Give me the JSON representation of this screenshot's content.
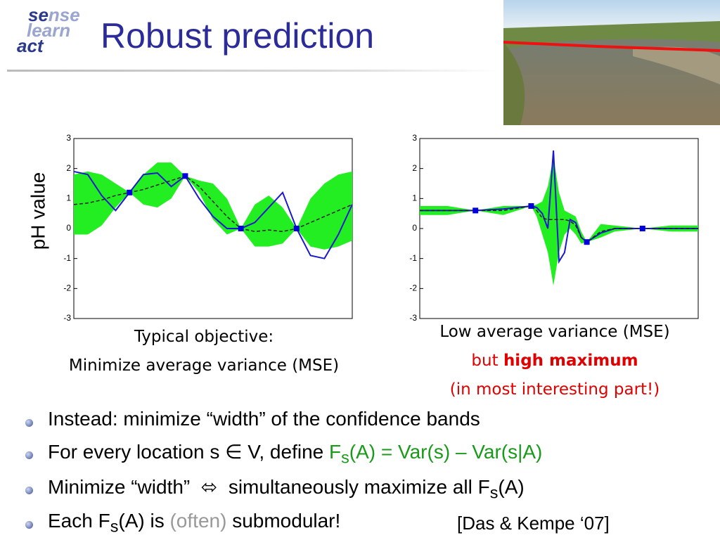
{
  "title": "Robust prediction",
  "logo": [
    [
      {
        "text": "se",
        "style": "dark"
      },
      {
        "text": "nse",
        "style": "light"
      }
    ],
    [
      {
        "text": "le",
        "style": "light"
      },
      {
        "text": "arn",
        "style": "light"
      }
    ],
    [
      {
        "text": "act",
        "style": "dark"
      }
    ]
  ],
  "chart_data": [
    {
      "type": "line",
      "ylabel": "pH value",
      "xlim": [
        0,
        1
      ],
      "ylim": [
        -3,
        3
      ],
      "yticks": [
        3,
        2,
        1,
        0,
        -1,
        -2,
        -3
      ],
      "x": [
        0,
        0.05,
        0.1,
        0.15,
        0.2,
        0.25,
        0.3,
        0.35,
        0.4,
        0.45,
        0.5,
        0.55,
        0.6,
        0.65,
        0.7,
        0.75,
        0.8,
        0.85,
        0.9,
        0.95,
        1
      ],
      "band": {
        "color": "#22ee22",
        "upper": [
          1.8,
          1.9,
          1.8,
          1.5,
          1.2,
          1.8,
          2.2,
          2.2,
          1.75,
          1.6,
          1.5,
          1.0,
          0.0,
          0.8,
          1.1,
          0.7,
          0.0,
          1.0,
          1.5,
          1.8,
          1.9
        ],
        "lower": [
          -0.2,
          -0.2,
          0.1,
          0.7,
          1.2,
          0.8,
          0.7,
          1.0,
          1.75,
          1.2,
          0.3,
          -0.2,
          0.0,
          -0.6,
          -0.6,
          -0.5,
          0.0,
          -0.6,
          -0.7,
          -0.6,
          -0.4
        ]
      },
      "series": [
        {
          "color": "#1a1acc",
          "dashed": false,
          "values": [
            1.9,
            1.8,
            1.1,
            0.6,
            1.2,
            1.8,
            1.85,
            1.4,
            1.75,
            1.0,
            0.4,
            0.0,
            0.0,
            0.2,
            0.7,
            1.2,
            0.0,
            -0.9,
            -1.0,
            -0.2,
            0.8
          ]
        },
        {
          "color": "#222222",
          "dashed": true,
          "values": [
            0.8,
            0.85,
            0.95,
            1.1,
            1.2,
            1.3,
            1.45,
            1.6,
            1.75,
            1.4,
            0.9,
            0.4,
            0.0,
            -0.1,
            -0.05,
            -0.1,
            0.0,
            0.2,
            0.4,
            0.6,
            0.8
          ]
        }
      ],
      "points": {
        "color": "#0000dd",
        "x": [
          0.2,
          0.4,
          0.6,
          0.8
        ],
        "values": [
          1.2,
          1.75,
          0,
          0
        ]
      },
      "caption": [
        [
          {
            "text": "Typical objective:",
            "style": ""
          }
        ],
        [
          {
            "text": "Minimize average variance (MSE)",
            "style": ""
          }
        ]
      ]
    },
    {
      "type": "line",
      "xlim": [
        0,
        1
      ],
      "ylim": [
        -3,
        3
      ],
      "yticks": [
        3,
        2,
        1,
        0,
        -1,
        -2,
        -3
      ],
      "x": [
        0,
        0.1,
        0.2,
        0.3,
        0.4,
        0.42,
        0.44,
        0.46,
        0.48,
        0.5,
        0.52,
        0.54,
        0.56,
        0.58,
        0.6,
        0.65,
        0.7,
        0.8,
        0.9,
        1.0
      ],
      "band": {
        "color": "#22ee22",
        "upper": [
          0.75,
          0.75,
          0.6,
          0.75,
          0.75,
          0.8,
          0.9,
          1.4,
          2.4,
          1.2,
          0.6,
          0.5,
          0.4,
          -0.1,
          -0.45,
          0.15,
          0.1,
          0.0,
          0.1,
          0.1
        ],
        "lower": [
          0.45,
          0.45,
          0.6,
          0.45,
          0.75,
          0.4,
          -0.2,
          -0.8,
          -1.9,
          -0.8,
          -0.2,
          0.0,
          -0.2,
          -0.5,
          -0.45,
          -0.3,
          -0.1,
          0.0,
          -0.1,
          -0.1
        ]
      },
      "series": [
        {
          "color": "#1a1acc",
          "dashed": false,
          "values": [
            0.6,
            0.6,
            0.6,
            0.65,
            0.75,
            0.7,
            0.5,
            0.0,
            2.6,
            -1.1,
            -0.8,
            0.3,
            0.2,
            -0.3,
            -0.45,
            -0.15,
            0.0,
            0.0,
            0.0,
            0.0
          ]
        },
        {
          "color": "#222222",
          "dashed": true,
          "values": [
            0.6,
            0.6,
            0.6,
            0.6,
            0.75,
            0.6,
            0.35,
            0.3,
            0.3,
            0.3,
            0.3,
            0.25,
            0.1,
            -0.3,
            -0.45,
            -0.1,
            0.0,
            0.0,
            0.0,
            0.0
          ]
        }
      ],
      "points": {
        "color": "#0000dd",
        "x": [
          0.2,
          0.4,
          0.6,
          0.8
        ],
        "values": [
          0.6,
          0.75,
          -0.45,
          0
        ]
      },
      "caption": [
        [
          {
            "text": "Low average variance (MSE)",
            "style": ""
          }
        ],
        [
          {
            "text": "but ",
            "style": "red"
          },
          {
            "text": "high maximum",
            "style": "red bold"
          }
        ],
        [
          {
            "text": "(in most interesting part!)",
            "style": "red"
          }
        ]
      ]
    }
  ],
  "bullets": [
    [
      {
        "text": "Instead: minimize “width” of the confidence bands",
        "style": ""
      }
    ],
    [
      {
        "text": "For every location s ∈ V, define ",
        "style": ""
      },
      {
        "text": "F",
        "style": "green"
      },
      {
        "text": "s",
        "style": "green sub"
      },
      {
        "text": "(A) = Var(s) – Var(s|A)",
        "style": "green"
      }
    ],
    [
      {
        "text": "Minimize “width”  ⬄  simultaneously maximize all F",
        "style": ""
      },
      {
        "text": "s",
        "style": "sub"
      },
      {
        "text": "(A)",
        "style": ""
      }
    ],
    [
      {
        "text": "Each F",
        "style": ""
      },
      {
        "text": "s",
        "style": "sub"
      },
      {
        "text": "(A) is ",
        "style": ""
      },
      {
        "text": "(often)",
        "style": "gray"
      },
      {
        "text": " submodular!",
        "style": ""
      }
    ]
  ],
  "citation": "[Das & Kempe ‘07]"
}
